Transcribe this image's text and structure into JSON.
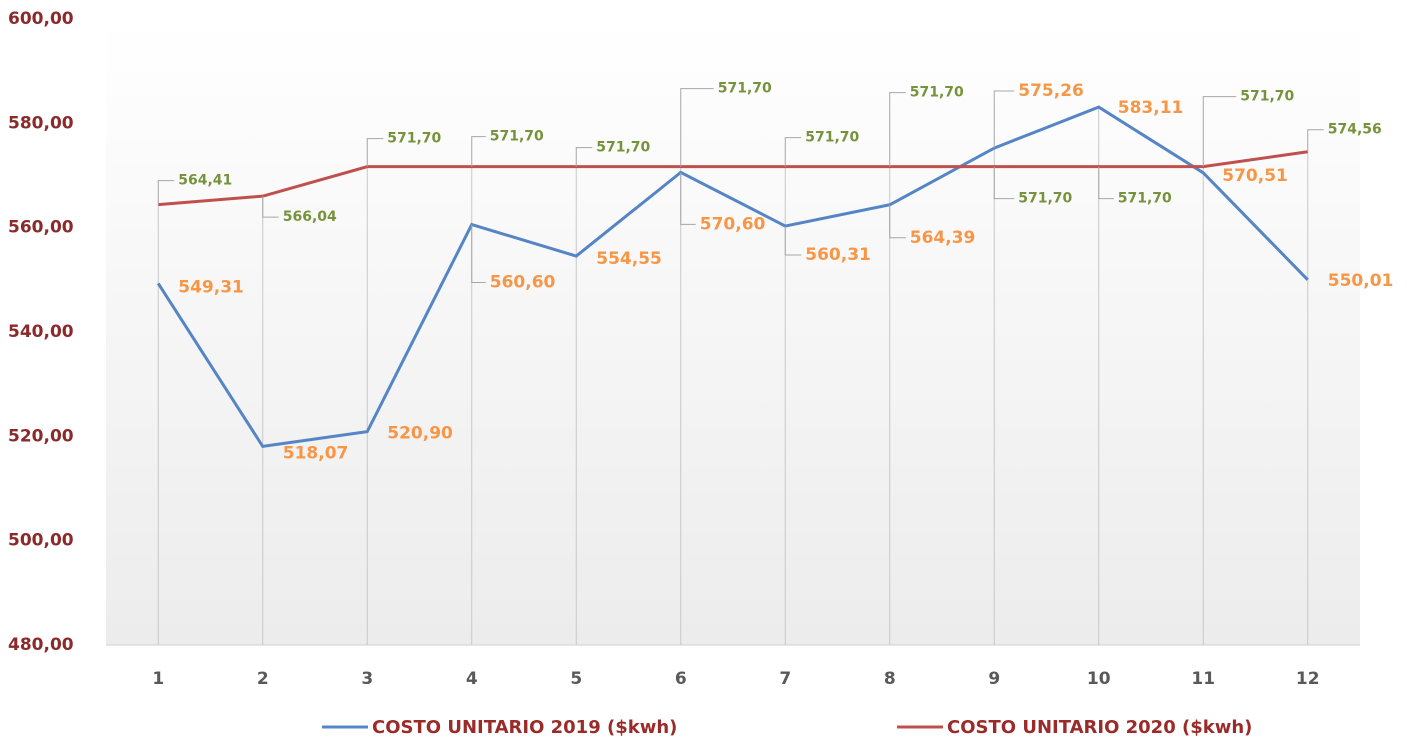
{
  "chart_data": {
    "type": "line",
    "categories": [
      "1",
      "2",
      "3",
      "4",
      "5",
      "6",
      "7",
      "8",
      "9",
      "10",
      "11",
      "12"
    ],
    "series": [
      {
        "name": "COSTO UNITARIO 2019 ($kwh)",
        "color": "#5585c5",
        "values": [
          549.31,
          518.07,
          520.9,
          560.6,
          554.55,
          570.6,
          560.31,
          564.39,
          575.26,
          583.11,
          570.51,
          550.01
        ],
        "value_labels": [
          "549,31",
          "518,07",
          "520,90",
          "560,60",
          "554,55",
          "570,60",
          "560,31",
          "564,39",
          "575,26",
          "583,11",
          "570,51",
          "550,01"
        ]
      },
      {
        "name": "COSTO UNITARIO 2020 ($kwh)",
        "color": "#c0504d",
        "values": [
          564.41,
          566.04,
          571.7,
          571.7,
          571.7,
          571.7,
          571.7,
          571.7,
          571.7,
          571.7,
          571.7,
          574.56
        ],
        "value_labels": [
          "564,41",
          "566,04",
          "571,70",
          "571,70",
          "571,70",
          "571,70",
          "571,70",
          "571,70",
          "571,70",
          "571,70",
          "571,70",
          "574,56"
        ]
      }
    ],
    "ylim": [
      480,
      600
    ],
    "yticks": [
      {
        "value": 480,
        "label": "480,00"
      },
      {
        "value": 500,
        "label": "500,00"
      },
      {
        "value": 520,
        "label": "520,00"
      },
      {
        "value": 540,
        "label": "540,00"
      },
      {
        "value": 560,
        "label": "560,00"
      },
      {
        "value": 580,
        "label": "580,00"
      },
      {
        "value": 600,
        "label": "600,00"
      }
    ],
    "legend": "bottom"
  }
}
